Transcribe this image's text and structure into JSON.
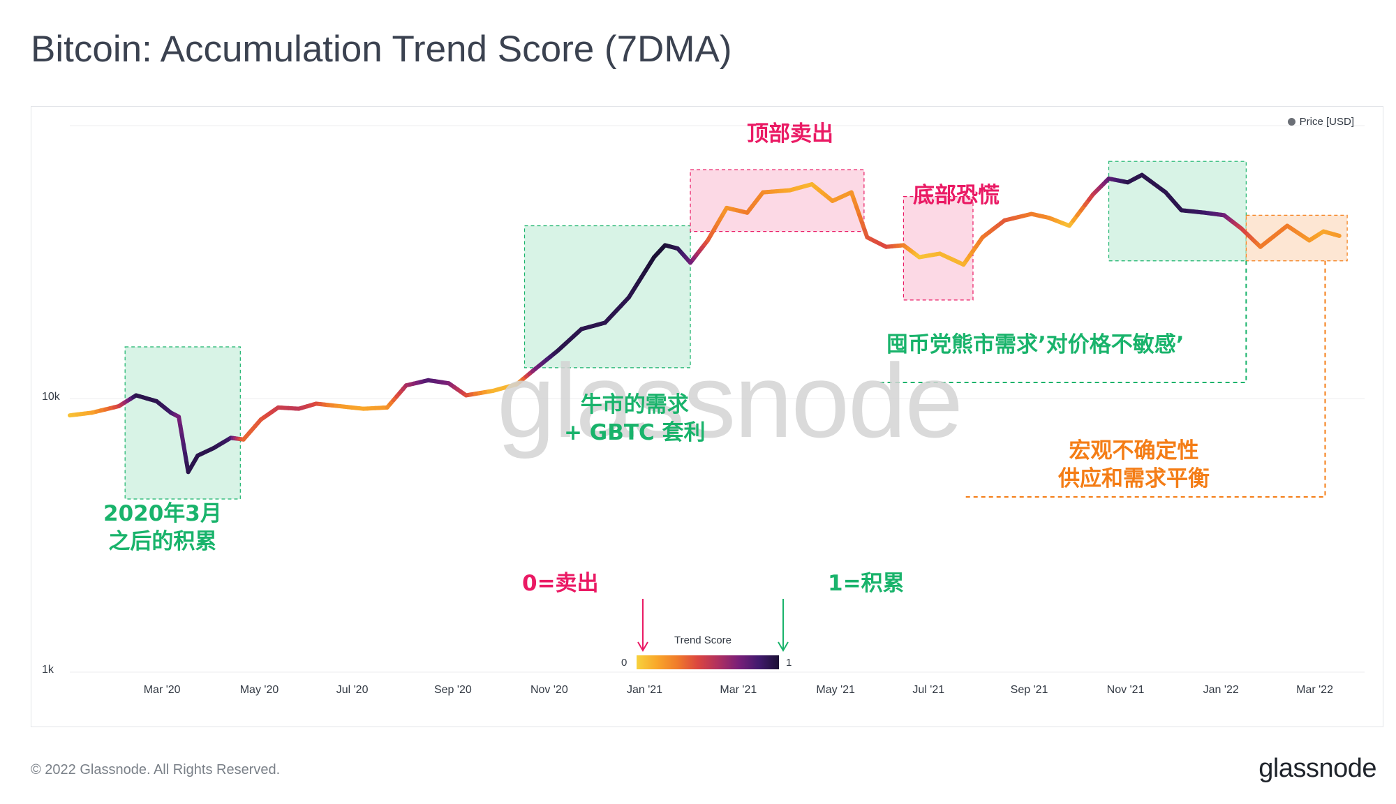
{
  "title": "Bitcoin: Accumulation Trend Score (7DMA)",
  "legend": {
    "label": "Price [USD]"
  },
  "footer": {
    "copyright": "© 2022 Glassnode. All Rights Reserved.",
    "brand": "glassnode"
  },
  "watermark": "glassnode",
  "colorbar": {
    "title": "Trend Score",
    "min": "0",
    "max": "1"
  },
  "annotations": {
    "march2020": [
      "2020年3月",
      "之后的积累"
    ],
    "bull": [
      "牛市的需求",
      "+ GBTC 套利"
    ],
    "top_sell": "顶部卖出",
    "bottom_panic": "底部恐慌",
    "bear_insensitive": "囤币党熊市需求’对价格不敏感’",
    "macro": [
      "宏观不确定性",
      "供应和需求平衡"
    ],
    "zero_sell": "0=卖出",
    "one_accum": "1=积累"
  },
  "colors": {
    "green": "#19b36b",
    "pink": "#ea1a64",
    "orange": "#f47d16",
    "green_fill": "#d8f3e6",
    "pink_fill": "#fcd9e5",
    "orange_fill": "#fde6d3"
  },
  "chart_data": {
    "type": "line",
    "title": "Bitcoin: Accumulation Trend Score (7DMA)",
    "y_scale": "log",
    "ylim": [
      1000,
      100000
    ],
    "y_ticks": [
      "1k",
      "10k"
    ],
    "x_ticks": [
      "Mar '20",
      "May '20",
      "Jul '20",
      "Sep '20",
      "Nov '20",
      "Jan '21",
      "Mar '21",
      "May '21",
      "Jul '21",
      "Sep '21",
      "Nov '21",
      "Jan '22",
      "Mar '22"
    ],
    "grid": true,
    "legend_position": "top-right",
    "series": [
      {
        "name": "Price [USD]",
        "color_by": "Trend Score",
        "points": [
          {
            "x": "2020-01-01",
            "y": 8700,
            "s": 0.05
          },
          {
            "x": "2020-01-15",
            "y": 8900,
            "s": 0.15
          },
          {
            "x": "2020-02-01",
            "y": 9400,
            "s": 0.45
          },
          {
            "x": "2020-02-12",
            "y": 10300,
            "s": 0.95
          },
          {
            "x": "2020-02-25",
            "y": 9800,
            "s": 0.95
          },
          {
            "x": "2020-03-05",
            "y": 8900,
            "s": 0.9
          },
          {
            "x": "2020-03-10",
            "y": 8600,
            "s": 0.75
          },
          {
            "x": "2020-03-16",
            "y": 5400,
            "s": 0.95
          },
          {
            "x": "2020-03-22",
            "y": 6200,
            "s": 0.95
          },
          {
            "x": "2020-04-01",
            "y": 6600,
            "s": 0.95
          },
          {
            "x": "2020-04-12",
            "y": 7200,
            "s": 0.9
          },
          {
            "x": "2020-04-20",
            "y": 7100,
            "s": 0.35
          },
          {
            "x": "2020-05-01",
            "y": 8400,
            "s": 0.4
          },
          {
            "x": "2020-05-12",
            "y": 9300,
            "s": 0.5
          },
          {
            "x": "2020-05-25",
            "y": 9200,
            "s": 0.55
          },
          {
            "x": "2020-06-05",
            "y": 9600,
            "s": 0.45
          },
          {
            "x": "2020-06-20",
            "y": 9400,
            "s": 0.2
          },
          {
            "x": "2020-07-05",
            "y": 9200,
            "s": 0.15
          },
          {
            "x": "2020-07-20",
            "y": 9300,
            "s": 0.2
          },
          {
            "x": "2020-08-01",
            "y": 11200,
            "s": 0.6
          },
          {
            "x": "2020-08-15",
            "y": 11700,
            "s": 0.85
          },
          {
            "x": "2020-08-28",
            "y": 11400,
            "s": 0.75
          },
          {
            "x": "2020-09-08",
            "y": 10300,
            "s": 0.45
          },
          {
            "x": "2020-09-25",
            "y": 10700,
            "s": 0.1
          },
          {
            "x": "2020-10-10",
            "y": 11300,
            "s": 0.1
          },
          {
            "x": "2020-10-22",
            "y": 12900,
            "s": 0.75
          },
          {
            "x": "2020-11-05",
            "y": 15000,
            "s": 0.95
          },
          {
            "x": "2020-11-20",
            "y": 18000,
            "s": 0.95
          },
          {
            "x": "2020-12-05",
            "y": 19000,
            "s": 0.95
          },
          {
            "x": "2020-12-20",
            "y": 23500,
            "s": 0.95
          },
          {
            "x": "2021-01-05",
            "y": 33000,
            "s": 1.0
          },
          {
            "x": "2021-01-12",
            "y": 36500,
            "s": 1.0
          },
          {
            "x": "2021-01-20",
            "y": 35500,
            "s": 0.95
          },
          {
            "x": "2021-01-28",
            "y": 31500,
            "s": 0.8
          },
          {
            "x": "2021-02-08",
            "y": 38000,
            "s": 0.4
          },
          {
            "x": "2021-02-20",
            "y": 50000,
            "s": 0.2
          },
          {
            "x": "2021-03-05",
            "y": 48000,
            "s": 0.3
          },
          {
            "x": "2021-03-15",
            "y": 57000,
            "s": 0.25
          },
          {
            "x": "2021-04-01",
            "y": 58000,
            "s": 0.15
          },
          {
            "x": "2021-04-15",
            "y": 61000,
            "s": 0.1
          },
          {
            "x": "2021-04-28",
            "y": 53000,
            "s": 0.2
          },
          {
            "x": "2021-05-10",
            "y": 57000,
            "s": 0.2
          },
          {
            "x": "2021-05-20",
            "y": 39000,
            "s": 0.4
          },
          {
            "x": "2021-06-01",
            "y": 36000,
            "s": 0.45
          },
          {
            "x": "2021-06-12",
            "y": 36500,
            "s": 0.3
          },
          {
            "x": "2021-06-22",
            "y": 33000,
            "s": 0.05
          },
          {
            "x": "2021-07-05",
            "y": 34000,
            "s": 0.1
          },
          {
            "x": "2021-07-20",
            "y": 31000,
            "s": 0.1
          },
          {
            "x": "2021-08-01",
            "y": 39000,
            "s": 0.3
          },
          {
            "x": "2021-08-15",
            "y": 45000,
            "s": 0.4
          },
          {
            "x": "2021-09-01",
            "y": 47500,
            "s": 0.3
          },
          {
            "x": "2021-09-12",
            "y": 46000,
            "s": 0.25
          },
          {
            "x": "2021-09-25",
            "y": 43000,
            "s": 0.05
          },
          {
            "x": "2021-10-10",
            "y": 56000,
            "s": 0.5
          },
          {
            "x": "2021-10-20",
            "y": 64000,
            "s": 0.8
          },
          {
            "x": "2021-11-01",
            "y": 62000,
            "s": 0.95
          },
          {
            "x": "2021-11-10",
            "y": 66000,
            "s": 0.95
          },
          {
            "x": "2021-11-25",
            "y": 57000,
            "s": 0.95
          },
          {
            "x": "2021-12-05",
            "y": 49000,
            "s": 0.95
          },
          {
            "x": "2021-12-20",
            "y": 48000,
            "s": 0.9
          },
          {
            "x": "2022-01-01",
            "y": 47000,
            "s": 0.8
          },
          {
            "x": "2022-01-12",
            "y": 42000,
            "s": 0.5
          },
          {
            "x": "2022-01-24",
            "y": 36000,
            "s": 0.3
          },
          {
            "x": "2022-02-10",
            "y": 43000,
            "s": 0.3
          },
          {
            "x": "2022-02-24",
            "y": 38000,
            "s": 0.2
          },
          {
            "x": "2022-03-05",
            "y": 41000,
            "s": 0.15
          },
          {
            "x": "2022-03-15",
            "y": 39500,
            "s": 0.2
          }
        ]
      }
    ],
    "regions": [
      {
        "start": "2020-02-05",
        "end": "2020-04-18",
        "ymin": 4300,
        "ymax": 15500,
        "kind": "green"
      },
      {
        "start": "2020-10-15",
        "end": "2021-01-28",
        "ymin": 13000,
        "ymax": 43000,
        "kind": "green"
      },
      {
        "start": "2021-01-28",
        "end": "2021-05-18",
        "ymin": 41000,
        "ymax": 69000,
        "kind": "pink"
      },
      {
        "start": "2021-06-12",
        "end": "2021-07-26",
        "ymin": 23000,
        "ymax": 55000,
        "kind": "pink"
      },
      {
        "start": "2021-10-20",
        "end": "2022-01-15",
        "ymin": 32000,
        "ymax": 74000,
        "kind": "green"
      },
      {
        "start": "2022-01-15",
        "end": "2022-03-20",
        "ymin": 32000,
        "ymax": 47000,
        "kind": "orange"
      }
    ]
  }
}
